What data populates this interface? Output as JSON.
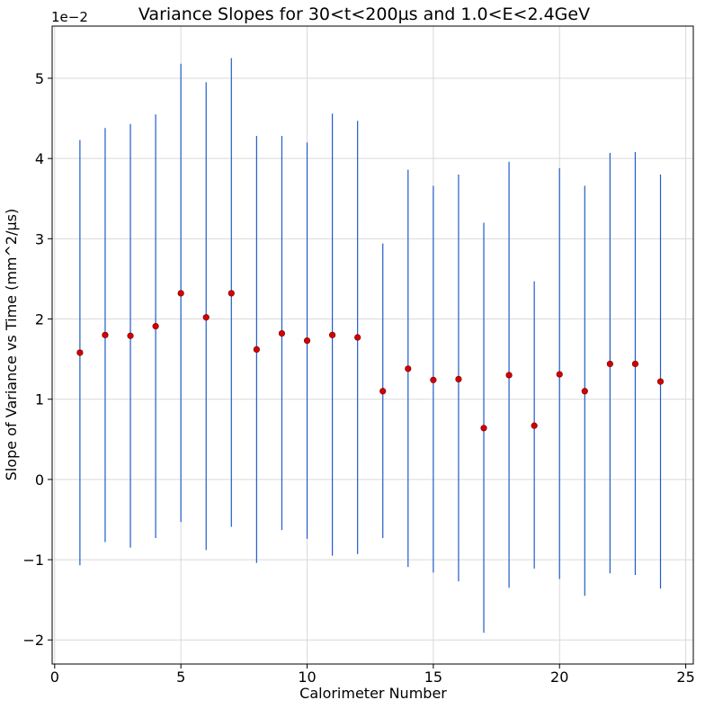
{
  "chart_data": {
    "type": "scatter",
    "title": "Variance Slopes for 30<t<200µs and 1.0<E<2.4GeV",
    "xlabel": "Calorimeter Number",
    "ylabel": "Slope of Variance vs Time (mm^2/µs)",
    "y_offset_label": "1e−2",
    "xlim": [
      -0.1,
      25.3
    ],
    "ylim": [
      -2.3,
      5.65
    ],
    "xticks": [
      0,
      5,
      10,
      15,
      20,
      25
    ],
    "xtick_labels": [
      "0",
      "5",
      "10",
      "15",
      "20",
      "25"
    ],
    "yticks": [
      -2,
      -1,
      0,
      1,
      2,
      3,
      4,
      5
    ],
    "ytick_labels": [
      "−2",
      "−1",
      "0",
      "1",
      "2",
      "3",
      "4",
      "5"
    ],
    "grid": true,
    "series": [
      {
        "x": [
          1,
          2,
          3,
          4,
          5,
          6,
          7,
          8,
          9,
          10,
          11,
          12,
          13,
          14,
          15,
          16,
          17,
          18,
          19,
          20,
          21,
          22,
          23,
          24
        ],
        "y": [
          1.58,
          1.8,
          1.79,
          1.91,
          2.32,
          2.02,
          2.32,
          1.62,
          1.82,
          1.73,
          1.8,
          1.77,
          1.1,
          1.38,
          1.24,
          1.25,
          0.64,
          1.3,
          0.67,
          1.31,
          1.1,
          1.44,
          1.44,
          1.22
        ],
        "err_low": [
          -1.07,
          -0.78,
          -0.85,
          -0.73,
          -0.53,
          -0.88,
          -0.59,
          -1.04,
          -0.63,
          -0.74,
          -0.95,
          -0.93,
          -0.73,
          -1.09,
          -1.16,
          -1.27,
          -1.91,
          -1.35,
          -1.11,
          -1.24,
          -1.45,
          -1.17,
          -1.19,
          -1.36
        ],
        "err_high": [
          4.23,
          4.38,
          4.43,
          4.55,
          5.18,
          4.95,
          5.25,
          4.28,
          4.28,
          4.2,
          4.56,
          4.47,
          2.94,
          3.86,
          3.66,
          3.8,
          3.2,
          3.96,
          2.47,
          3.88,
          3.66,
          4.07,
          4.08,
          3.8
        ]
      }
    ],
    "colors": {
      "errorbar": "#1f5cc9",
      "marker_fill": "#d40000",
      "marker_edge": "#8b0000",
      "grid": "#d9d9d9",
      "axis": "#000000"
    }
  }
}
